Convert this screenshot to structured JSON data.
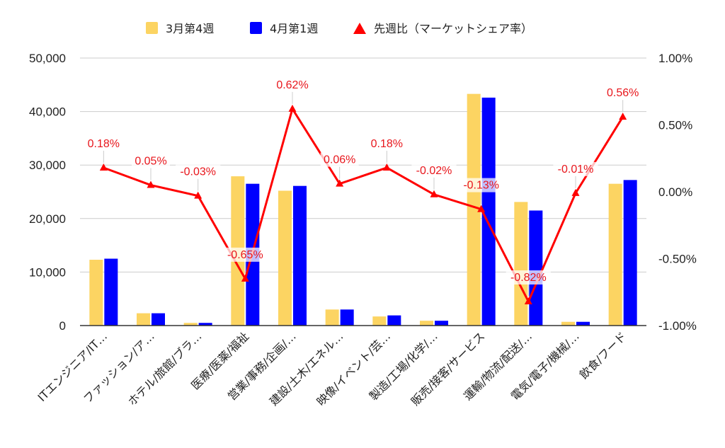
{
  "chart_data": {
    "type": "bar+line",
    "categories": [
      "ITエンジニア/IT…",
      "ファッション/ア…",
      "ホテル/旅館/ブラ…",
      "医療/医薬/福祉",
      "営業/事務/企画/…",
      "建設/土木/エネル…",
      "映像/イベント/芸…",
      "製造/工場/化学/…",
      "販売/接客/サービス",
      "運輸/物流/配送/…",
      "電気/電子/機械/…",
      "飲食/フード"
    ],
    "series": [
      {
        "name": "3月第4週",
        "type": "bar",
        "axis": "left",
        "color": "#fcd462",
        "values": [
          12300,
          2300,
          500,
          27900,
          25200,
          3000,
          1700,
          900,
          43300,
          23100,
          700,
          26500
        ]
      },
      {
        "name": "4月第1週",
        "type": "bar",
        "axis": "left",
        "color": "#0000ff",
        "values": [
          12500,
          2300,
          500,
          26500,
          26100,
          3000,
          1900,
          900,
          42600,
          21500,
          700,
          27200
        ]
      },
      {
        "name": "先週比（マーケットシェア率）",
        "type": "line",
        "axis": "right",
        "color": "#ff0000",
        "values": [
          0.18,
          0.05,
          -0.03,
          -0.65,
          0.62,
          0.06,
          0.18,
          -0.02,
          -0.13,
          -0.82,
          -0.01,
          0.56
        ],
        "data_labels": [
          "0.18%",
          "0.05%",
          "-0.03%",
          "-0.65%",
          "0.62%",
          "0.06%",
          "0.18%",
          "-0.02%",
          "-0.13%",
          "-0.82%",
          "-0.01%",
          "0.56%"
        ]
      }
    ],
    "y_left": {
      "range": [
        0,
        50000
      ],
      "ticks": [
        0,
        10000,
        20000,
        30000,
        40000,
        50000
      ],
      "tick_labels": [
        "0",
        "10,000",
        "20,000",
        "30,000",
        "40,000",
        "50,000"
      ]
    },
    "y_right": {
      "range": [
        -1.0,
        1.0
      ],
      "ticks": [
        -1.0,
        -0.5,
        0.0,
        0.5,
        1.0
      ],
      "tick_labels": [
        "-1.00%",
        "-0.50%",
        "0.00%",
        "0.50%",
        "1.00%"
      ]
    },
    "grid": true,
    "legend_position": "top-center",
    "title": "",
    "xlabel": "",
    "ylabel": ""
  }
}
